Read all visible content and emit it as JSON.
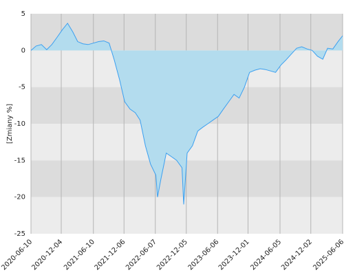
{
  "chart_data": {
    "type": "area",
    "y_label": "[Zmiany %]",
    "x": [
      "2020-06-10",
      "2020-07-10",
      "2020-08-10",
      "2020-09-10",
      "2020-10-10",
      "2020-11-10",
      "2020-12-10",
      "2021-01-10",
      "2021-02-10",
      "2021-03-10",
      "2021-04-10",
      "2021-05-10",
      "2021-06-10",
      "2021-07-10",
      "2021-08-10",
      "2021-09-10",
      "2021-10-10",
      "2021-11-10",
      "2021-12-10",
      "2022-01-10",
      "2022-02-10",
      "2022-03-10",
      "2022-04-10",
      "2022-05-10",
      "2022-06-10",
      "2022-06-20",
      "2022-07-10",
      "2022-08-10",
      "2022-09-10",
      "2022-10-10",
      "2022-11-10",
      "2022-11-20",
      "2022-12-10",
      "2023-01-10",
      "2023-02-10",
      "2023-03-10",
      "2023-04-10",
      "2023-05-10",
      "2023-06-10",
      "2023-07-10",
      "2023-08-10",
      "2023-09-10",
      "2023-10-10",
      "2023-11-10",
      "2023-12-10",
      "2024-01-10",
      "2024-02-10",
      "2024-03-10",
      "2024-04-10",
      "2024-05-10",
      "2024-06-10",
      "2024-07-10",
      "2024-08-10",
      "2024-09-10",
      "2024-10-10",
      "2024-11-10",
      "2024-12-10",
      "2025-01-10",
      "2025-02-10",
      "2025-03-10",
      "2025-04-10",
      "2025-05-10",
      "2025-06-06"
    ],
    "series": [
      {
        "name": "Zmiany",
        "color": "#3a9ff0",
        "fill": "#b3dcee",
        "values": [
          0,
          0.6,
          0.8,
          0.1,
          0.8,
          1.8,
          2.8,
          3.7,
          2.5,
          1.2,
          0.9,
          0.8,
          1.0,
          1.2,
          1.3,
          1.0,
          -1.3,
          -4,
          -7,
          -8,
          -8.5,
          -9.5,
          -13,
          -15.5,
          -17,
          -20,
          -17.5,
          -14,
          -14.5,
          -15,
          -16,
          -21,
          -14,
          -13,
          -11,
          -10.5,
          -10,
          -9.5,
          -9,
          -8,
          -7,
          -6,
          -6.5,
          -5,
          -3,
          -2.7,
          -2.5,
          -2.6,
          -2.8,
          -3,
          -2,
          -1.3,
          -0.5,
          0.3,
          0.5,
          0.2,
          0,
          -0.8,
          -1.2,
          0.3,
          0.2,
          1.2,
          2
        ]
      }
    ],
    "xlim": [
      "2020-06-10",
      "2025-06-06"
    ],
    "xticks": [
      "2020-06-10",
      "2020-12-04",
      "2021-06-10",
      "2021-12-06",
      "2022-06-07",
      "2022-12-05",
      "2023-06-06",
      "2023-12-01",
      "2024-06-05",
      "2024-12-02",
      "2025-06-06"
    ],
    "ylim": [
      -25,
      5
    ],
    "yticks": [
      5,
      0,
      -5,
      -10,
      -15,
      -20,
      -25
    ],
    "grid": true
  }
}
